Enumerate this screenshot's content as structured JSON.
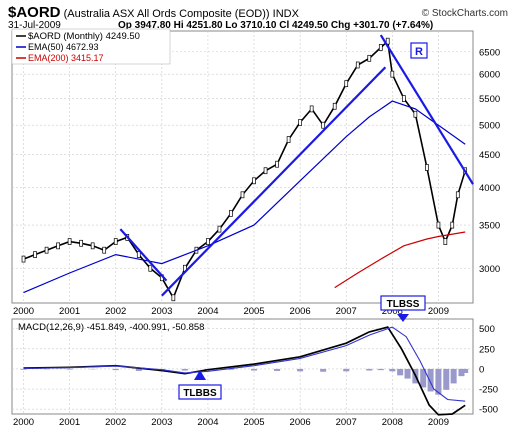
{
  "header": {
    "symbol": "$AORD",
    "name": "(Australia ASX All Ords Composite (EOD))",
    "exchange": "INDX",
    "date": "31-Jul-2009",
    "ohlc": "Op 3947.80   Hi 4251.80   Lo 3710.10   Cl 4249.50   Chg +301.70 (+7.64%)",
    "copyright": "© StockCharts.com"
  },
  "legend": {
    "line1": "$AORD (Monthly) 4249.50",
    "line2": "EMA(50) 4672.93",
    "line3": "EMA(200) 3415.17"
  },
  "macd_label": "MACD(12,26,9) -451.849, -400.991, -50.858",
  "annotations": {
    "r": "R",
    "tlbss_top": "TLBSS",
    "tlbss_bottom": "TLBBS"
  },
  "colors": {
    "background": "#ffffff",
    "price": "#000000",
    "ema50": "#0000cc",
    "ema200": "#cc0000",
    "trendline": "#1a1ae6",
    "histogram": "#9999cc",
    "macd_signal": "#3333cc"
  },
  "chart_data": [
    {
      "type": "line",
      "title": "$AORD (Monthly)",
      "ylog": true,
      "ylim": [
        2650,
        7000
      ],
      "xlim": [
        1999.75,
        2009.75
      ],
      "x_ticks": [
        "2000",
        "2001",
        "2002",
        "2003",
        "2004",
        "2005",
        "2006",
        "2007",
        "2008",
        "2009"
      ],
      "y_ticks": [
        3000,
        3500,
        4000,
        4500,
        5000,
        5500,
        6000,
        6500
      ],
      "grid": true,
      "series": [
        {
          "name": "$AORD (Monthly) 4249.50",
          "x": [
            2000.0,
            2000.25,
            2000.5,
            2000.75,
            2001.0,
            2001.25,
            2001.5,
            2001.75,
            2002.0,
            2002.25,
            2002.5,
            2002.75,
            2003.0,
            2003.25,
            2003.5,
            2003.75,
            2004.0,
            2004.25,
            2004.5,
            2004.75,
            2005.0,
            2005.25,
            2005.5,
            2005.75,
            2006.0,
            2006.25,
            2006.5,
            2006.75,
            2007.0,
            2007.25,
            2007.5,
            2007.75,
            2007.9,
            2008.0,
            2008.25,
            2008.5,
            2008.75,
            2009.0,
            2009.15,
            2009.3,
            2009.42,
            2009.58
          ],
          "values": [
            3100,
            3150,
            3200,
            3250,
            3300,
            3280,
            3250,
            3200,
            3300,
            3350,
            3150,
            3000,
            2900,
            2700,
            3000,
            3200,
            3300,
            3450,
            3650,
            3900,
            4100,
            4250,
            4350,
            4750,
            5050,
            5300,
            5000,
            5350,
            5800,
            6200,
            6350,
            6600,
            6750,
            6000,
            5500,
            5200,
            4300,
            3500,
            3300,
            3500,
            3900,
            4249.5
          ]
        },
        {
          "name": "EMA(50) 4672.93",
          "x": [
            2000.0,
            2001.0,
            2002.0,
            2003.0,
            2004.0,
            2005.0,
            2006.0,
            2007.0,
            2007.5,
            2008.0,
            2008.5,
            2009.0,
            2009.58
          ],
          "values": [
            2750,
            2950,
            3150,
            3050,
            3250,
            3500,
            4100,
            4800,
            5150,
            5450,
            5300,
            5000,
            4672.93
          ]
        },
        {
          "name": "EMA(200) 3415.17",
          "x": [
            2006.75,
            2007.25,
            2007.75,
            2008.25,
            2008.75,
            2009.0,
            2009.58
          ],
          "values": [
            2800,
            2950,
            3100,
            3250,
            3330,
            3360,
            3415.17
          ]
        }
      ],
      "trendlines": [
        {
          "x": [
            2002.1,
            2003.1
          ],
          "values": [
            3450,
            2870
          ]
        },
        {
          "x": [
            2003.0,
            2007.85
          ],
          "values": [
            2720,
            6150
          ]
        },
        {
          "x": [
            2007.75,
            2009.75
          ],
          "values": [
            6900,
            4050
          ]
        }
      ]
    },
    {
      "type": "line",
      "title": "MACD(12,26,9)",
      "ylim": [
        -560,
        620
      ],
      "xlim": [
        1999.75,
        2009.75
      ],
      "x_ticks": [
        "2000",
        "2001",
        "2002",
        "2003",
        "2004",
        "2005",
        "2006",
        "2007",
        "2008",
        "2009"
      ],
      "y_ticks": [
        -500,
        -250,
        0,
        250,
        500
      ],
      "series": [
        {
          "name": "MACD",
          "x": [
            2000.0,
            2001.0,
            2002.0,
            2003.0,
            2003.5,
            2004.0,
            2005.0,
            2006.0,
            2007.0,
            2007.5,
            2007.9,
            2008.2,
            2008.5,
            2008.8,
            2009.0,
            2009.3,
            2009.58
          ],
          "values": [
            10,
            20,
            40,
            -20,
            -60,
            -10,
            60,
            150,
            320,
            460,
            520,
            250,
            -80,
            -450,
            -570,
            -560,
            -451.85
          ]
        },
        {
          "name": "Signal",
          "x": [
            2000.0,
            2001.0,
            2002.0,
            2003.0,
            2003.5,
            2004.0,
            2005.0,
            2006.0,
            2007.0,
            2007.5,
            2008.0,
            2008.3,
            2008.6,
            2008.9,
            2009.2,
            2009.58
          ],
          "values": [
            5,
            15,
            35,
            -10,
            -50,
            -30,
            40,
            130,
            290,
            420,
            520,
            400,
            100,
            -250,
            -380,
            -400.99
          ]
        }
      ],
      "histogram": {
        "name": "Histogram",
        "x": [
          2000.0,
          2000.5,
          2001.0,
          2001.5,
          2002.0,
          2002.5,
          2003.0,
          2003.5,
          2004.0,
          2004.5,
          2005.0,
          2005.5,
          2006.0,
          2006.5,
          2007.0,
          2007.5,
          2007.75,
          2008.0,
          2008.17,
          2008.33,
          2008.5,
          2008.67,
          2008.83,
          2009.0,
          2009.17,
          2009.33,
          2009.5,
          2009.58
        ],
        "values": [
          -10,
          -5,
          -8,
          -5,
          -15,
          -25,
          -30,
          -20,
          -15,
          -10,
          -20,
          -25,
          -30,
          -35,
          -30,
          -20,
          -15,
          -30,
          -80,
          -120,
          -180,
          -230,
          -280,
          -320,
          -260,
          -180,
          -90,
          -50.86
        ]
      }
    }
  ]
}
